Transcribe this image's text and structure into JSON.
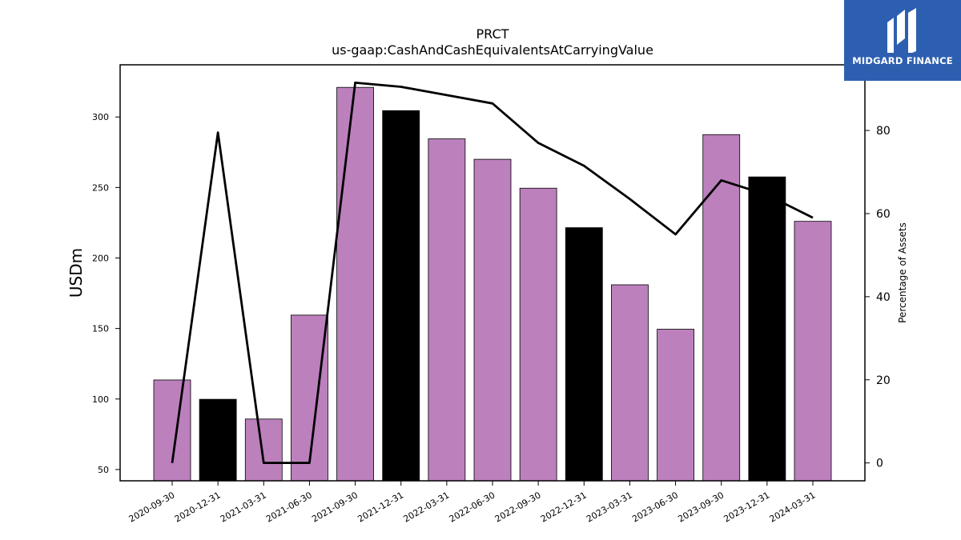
{
  "logo": {
    "text": "MIDGARD FINANCE",
    "icon": "midgard-logo-icon",
    "background": "#2d5fb0"
  },
  "chart_data": {
    "type": "bar",
    "title": "PRCT",
    "subtitle": "us-gaap:CashAndCashEquivalentsAtCarryingValue",
    "ylabel": "USDm",
    "y2label": "Percentage of Assets",
    "ylim": [
      42,
      337
    ],
    "y2lim": [
      -4.3,
      95.8
    ],
    "yticks": [
      50,
      100,
      150,
      200,
      250,
      300
    ],
    "y2ticks": [
      0,
      20,
      40,
      60,
      80
    ],
    "categories": [
      "2020-09-30",
      "2020-12-31",
      "2021-03-31",
      "2021-06-30",
      "2021-09-30",
      "2021-12-31",
      "2022-03-31",
      "2022-06-30",
      "2022-09-30",
      "2022-12-31",
      "2023-03-31",
      "2023-06-30",
      "2023-09-30",
      "2023-12-31",
      "2024-03-31"
    ],
    "series": [
      {
        "type": "bar",
        "axis": "left",
        "values": [
          113.5,
          99.8,
          85.8,
          159.5,
          321.0,
          304.5,
          284.5,
          270.0,
          249.5,
          221.5,
          181.0,
          149.5,
          287.5,
          257.5,
          226.0
        ]
      },
      {
        "type": "line",
        "axis": "right",
        "color": "#000000",
        "values": [
          0,
          79.5,
          0,
          0,
          91.5,
          90.5,
          88.5,
          86.5,
          77,
          71.5,
          63.5,
          55,
          68,
          64.5,
          59
        ]
      }
    ],
    "bar_colors": [
      "#bc80bd",
      "#000000",
      "#bc80bd",
      "#bc80bd",
      "#bc80bd",
      "#000000",
      "#bc80bd",
      "#bc80bd",
      "#bc80bd",
      "#000000",
      "#bc80bd",
      "#bc80bd",
      "#bc80bd",
      "#000000",
      "#bc80bd"
    ],
    "grid": false,
    "legend": "none"
  }
}
